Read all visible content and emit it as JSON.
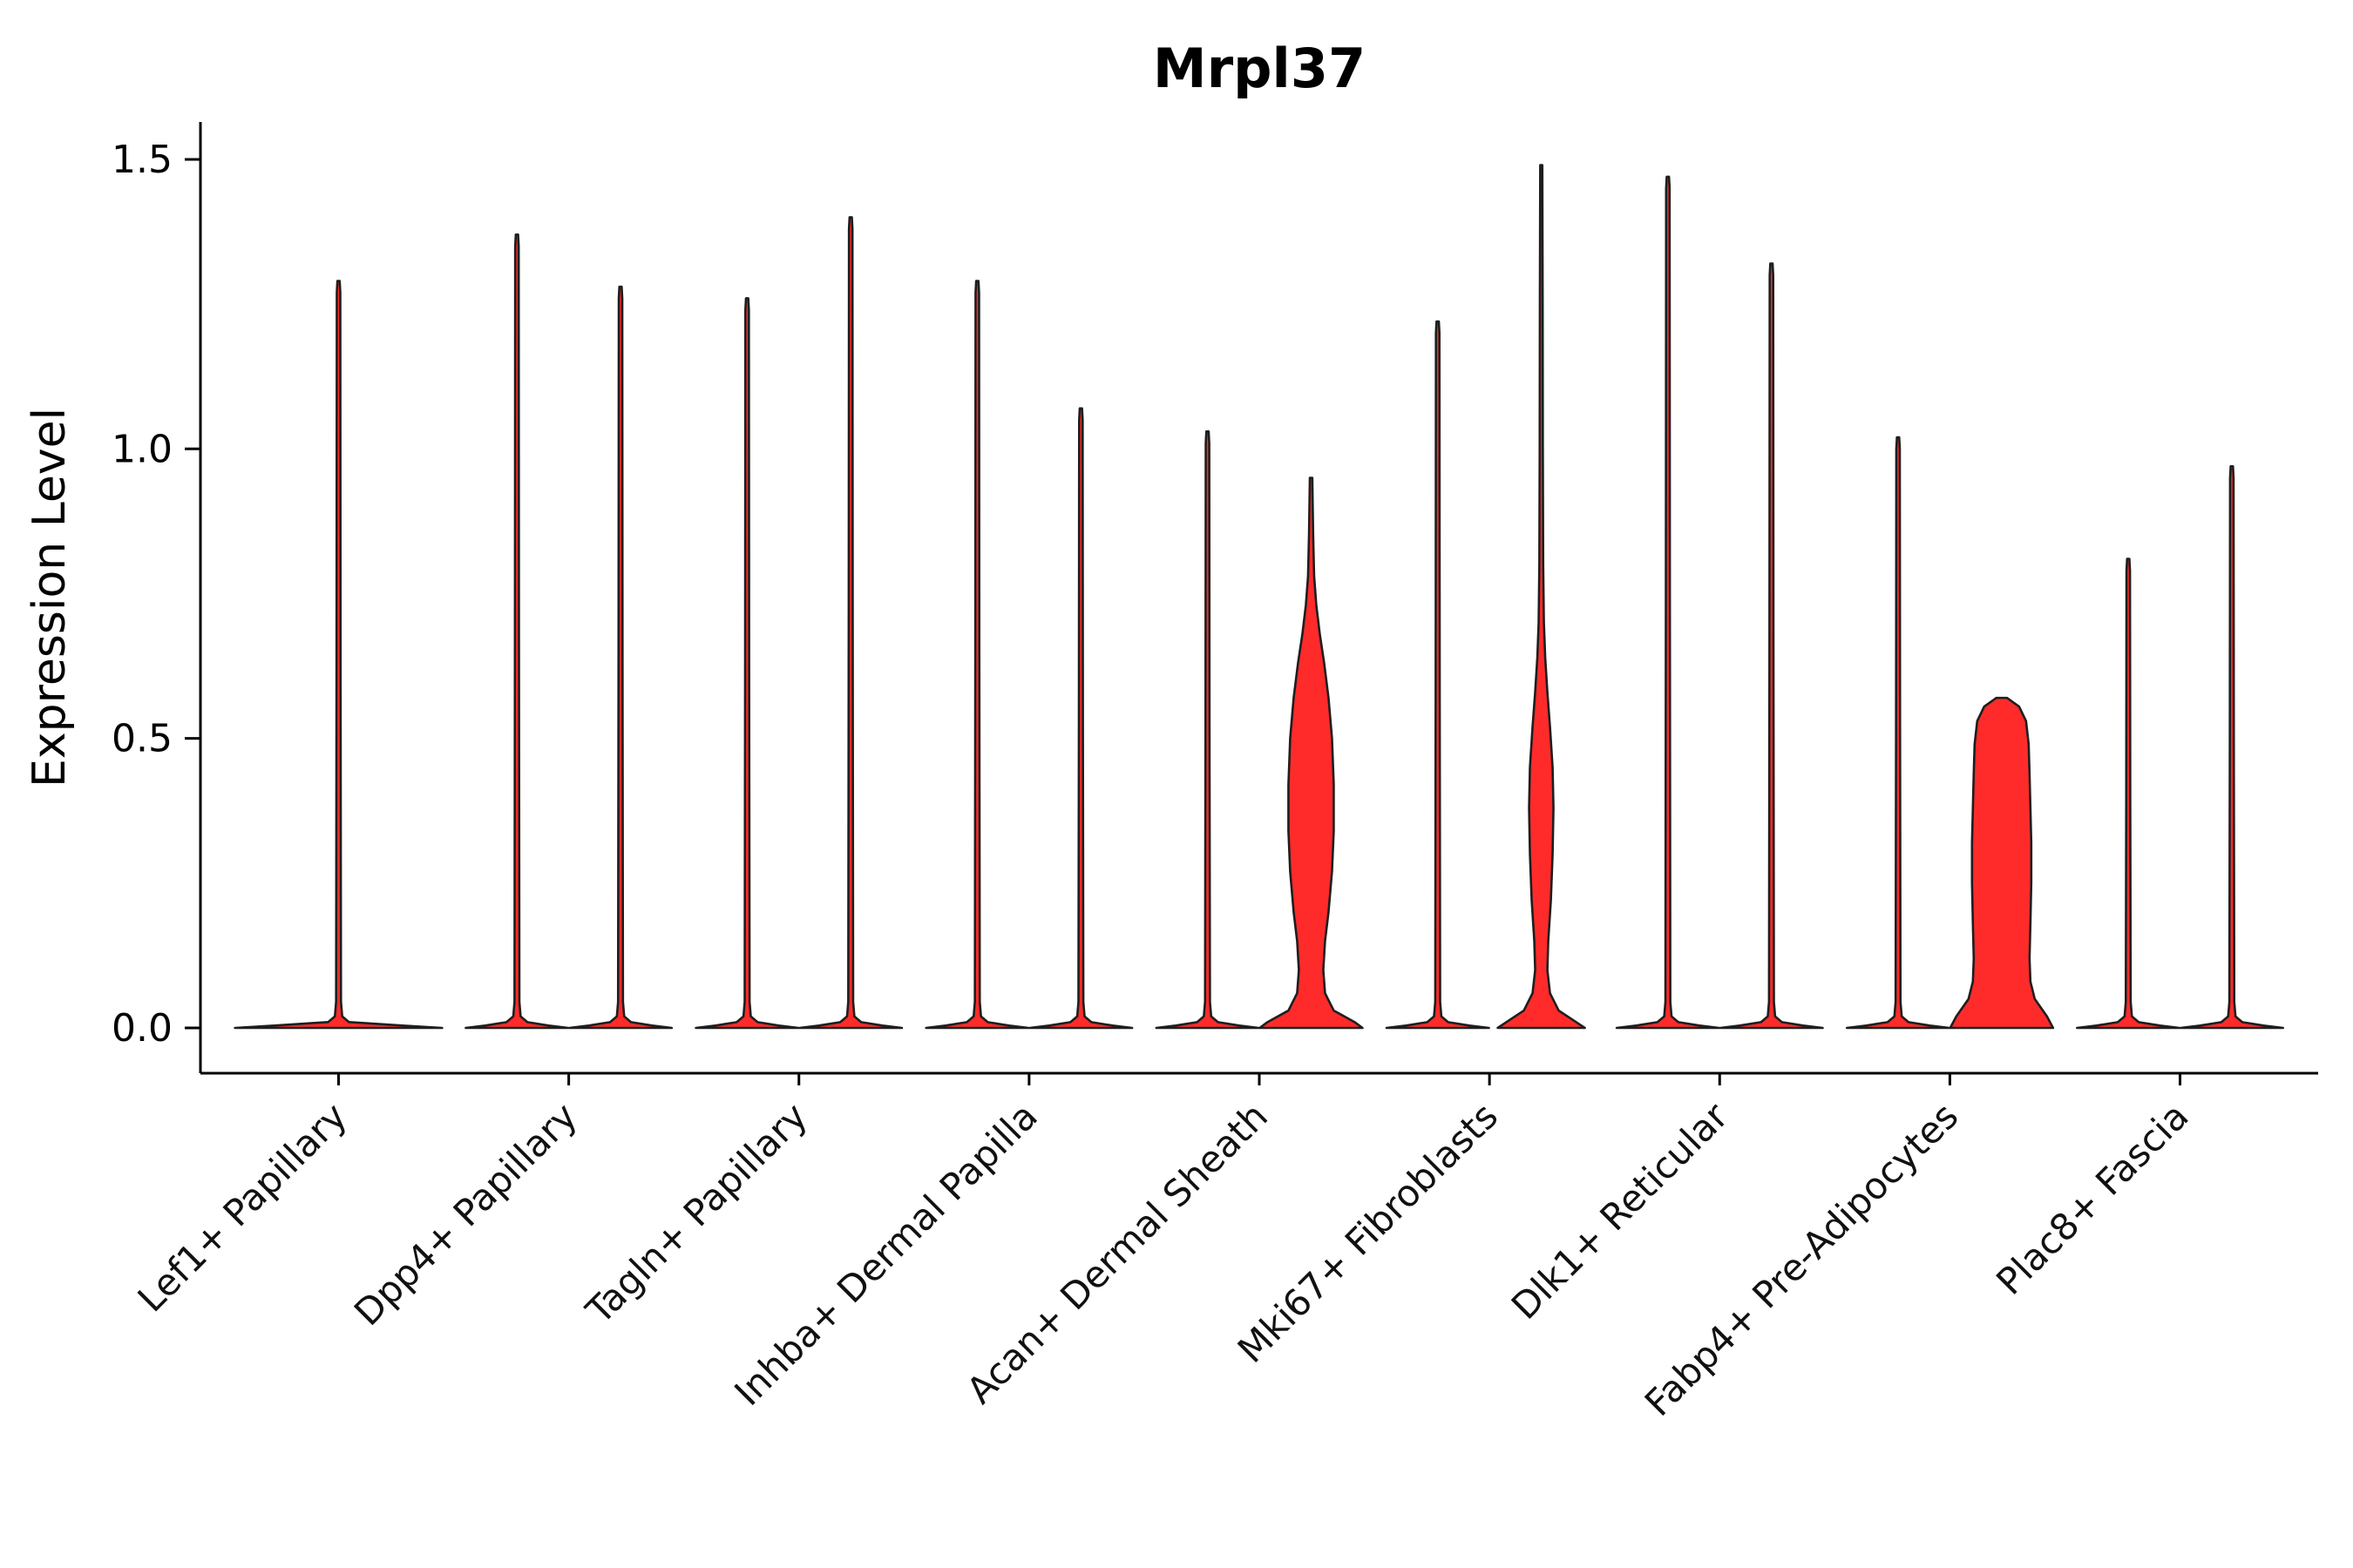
{
  "colors": {
    "violin_fill": "#FF2B2B",
    "violin_outline": "#1E1E1E",
    "axis": "#000000",
    "text": "#000000"
  },
  "chart_data": {
    "type": "violin",
    "title": "Mrpl37",
    "xlabel": "",
    "ylabel": "Expression Level",
    "ylim": [
      0,
      1.5
    ],
    "yticks": [
      0.0,
      0.5,
      1.0,
      1.5
    ],
    "ytick_labels": [
      "0.0",
      "0.5",
      "1.0",
      "1.5"
    ],
    "grid": false,
    "legend": "none",
    "categories": [
      "Lef1+ Papillary",
      "Dpp4+ Papillary",
      "Tagln+ Papillary",
      "Inhba+ Dermal Papilla",
      "Acan+ Dermal Sheath",
      "Mki67+ Fibroblasts",
      "Dlk1+ Reticular",
      "Fabp4+ Pre-Adipocytes",
      "Plac8+ Fascia"
    ],
    "violins": [
      {
        "category_index": 0,
        "category": "Lef1+ Papillary",
        "position": "center",
        "max_expression": 1.29,
        "kind": "spike"
      },
      {
        "category_index": 1,
        "category": "Dpp4+ Papillary",
        "position": "left",
        "max_expression": 1.37,
        "kind": "spike"
      },
      {
        "category_index": 1,
        "category": "Dpp4+ Papillary",
        "position": "right",
        "max_expression": 1.28,
        "kind": "spike"
      },
      {
        "category_index": 2,
        "category": "Tagln+ Papillary",
        "position": "left",
        "max_expression": 1.26,
        "kind": "spike"
      },
      {
        "category_index": 2,
        "category": "Tagln+ Papillary",
        "position": "right",
        "max_expression": 1.4,
        "kind": "spike"
      },
      {
        "category_index": 3,
        "category": "Inhba+ Dermal Papilla",
        "position": "left",
        "max_expression": 1.29,
        "kind": "spike"
      },
      {
        "category_index": 3,
        "category": "Inhba+ Dermal Papilla",
        "position": "right",
        "max_expression": 1.07,
        "kind": "spike"
      },
      {
        "category_index": 4,
        "category": "Acan+ Dermal Sheath",
        "position": "left",
        "max_expression": 1.03,
        "kind": "spike"
      },
      {
        "category_index": 4,
        "category": "Acan+ Dermal Sheath",
        "position": "right",
        "max_expression": 0.95,
        "kind": "body",
        "profile": [
          [
            0,
            59
          ],
          [
            0.01,
            50
          ],
          [
            0.03,
            26
          ],
          [
            0.06,
            16
          ],
          [
            0.1,
            14
          ],
          [
            0.15,
            16
          ],
          [
            0.2,
            20
          ],
          [
            0.27,
            24
          ],
          [
            0.34,
            26
          ],
          [
            0.42,
            26
          ],
          [
            0.5,
            24
          ],
          [
            0.57,
            20
          ],
          [
            0.63,
            15
          ],
          [
            0.68,
            10
          ],
          [
            0.73,
            6
          ],
          [
            0.78,
            3.5
          ],
          [
            0.85,
            2.4
          ],
          [
            0.95,
            1.4
          ]
        ]
      },
      {
        "category_index": 5,
        "category": "Mki67+ Fibroblasts",
        "position": "left",
        "max_expression": 1.22,
        "kind": "spike"
      },
      {
        "category_index": 5,
        "category": "Mki67+ Fibroblasts",
        "position": "right",
        "max_expression": 1.49,
        "kind": "body",
        "profile": [
          [
            0,
            50
          ],
          [
            0.01,
            40
          ],
          [
            0.03,
            20
          ],
          [
            0.06,
            10
          ],
          [
            0.1,
            7
          ],
          [
            0.15,
            8
          ],
          [
            0.22,
            11
          ],
          [
            0.3,
            13
          ],
          [
            0.38,
            14
          ],
          [
            0.45,
            13
          ],
          [
            0.52,
            10
          ],
          [
            0.58,
            7
          ],
          [
            0.64,
            4.5
          ],
          [
            0.7,
            3
          ],
          [
            0.8,
            2.2
          ],
          [
            1.0,
            1.8
          ],
          [
            1.25,
            1.6
          ],
          [
            1.49,
            1.2
          ]
        ]
      },
      {
        "category_index": 6,
        "category": "Dlk1+ Reticular",
        "position": "left",
        "max_expression": 1.47,
        "kind": "spike"
      },
      {
        "category_index": 6,
        "category": "Dlk1+ Reticular",
        "position": "right",
        "max_expression": 1.32,
        "kind": "spike"
      },
      {
        "category_index": 7,
        "category": "Fabp4+ Pre-Adipocytes",
        "position": "left",
        "max_expression": 1.02,
        "kind": "spike"
      },
      {
        "category_index": 7,
        "category": "Fabp4+ Pre-Adipocytes",
        "position": "right",
        "max_expression": 0.57,
        "kind": "body",
        "profile": [
          [
            0,
            59
          ],
          [
            0.02,
            52
          ],
          [
            0.05,
            38
          ],
          [
            0.08,
            33
          ],
          [
            0.12,
            32
          ],
          [
            0.18,
            33
          ],
          [
            0.25,
            34
          ],
          [
            0.32,
            34
          ],
          [
            0.38,
            33
          ],
          [
            0.44,
            32
          ],
          [
            0.49,
            31
          ],
          [
            0.53,
            28
          ],
          [
            0.555,
            20
          ],
          [
            0.57,
            6
          ]
        ]
      },
      {
        "category_index": 8,
        "category": "Plac8+ Fascia",
        "position": "left",
        "max_expression": 0.81,
        "kind": "spike"
      },
      {
        "category_index": 8,
        "category": "Plac8+ Fascia",
        "position": "right",
        "max_expression": 0.97,
        "kind": "spike"
      }
    ]
  }
}
